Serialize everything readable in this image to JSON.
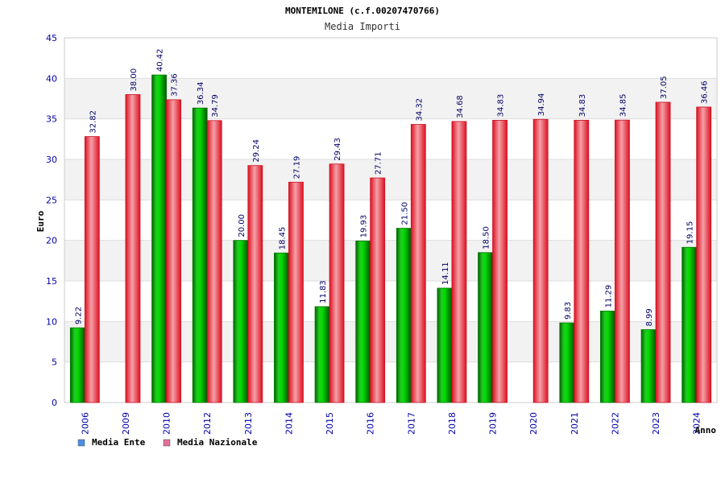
{
  "chart_data": {
    "type": "bar",
    "title": "MONTEMILONE (c.f.00207470766)",
    "subtitle": "Media Importi",
    "xlabel": "Anno",
    "ylabel": "Euro",
    "ylim": [
      0,
      45
    ],
    "yticks": [
      "0",
      "5",
      "10",
      "15",
      "20",
      "25",
      "30",
      "35",
      "40",
      "45"
    ],
    "grid": true,
    "legend_position": "bottom-left",
    "categories": [
      "2006",
      "2009",
      "2010",
      "2012",
      "2013",
      "2014",
      "2015",
      "2016",
      "2017",
      "2018",
      "2019",
      "2020",
      "2021",
      "2022",
      "2023",
      "2024"
    ],
    "series": [
      {
        "name": "Media Ente",
        "color": "#00aa00",
        "legend_color": "#4a90e2",
        "values": [
          9.22,
          null,
          40.42,
          36.34,
          20.0,
          18.45,
          11.83,
          19.93,
          21.5,
          14.11,
          18.5,
          null,
          9.83,
          11.29,
          8.99,
          19.15
        ],
        "labels": [
          "9.22",
          "",
          "40.42",
          "36.34",
          "20.00",
          "18.45",
          "11.83",
          "19.93",
          "21.50",
          "14.11",
          "18.50",
          "",
          "9.83",
          "11.29",
          "8.99",
          "19.15"
        ]
      },
      {
        "name": "Media Nazionale",
        "color": "#ee2233",
        "legend_color": "#e0709a",
        "values": [
          32.82,
          38.0,
          37.36,
          34.79,
          29.24,
          27.19,
          29.43,
          27.71,
          34.32,
          34.68,
          34.83,
          34.94,
          34.83,
          34.85,
          37.05,
          36.46
        ],
        "labels": [
          "32.82",
          "38.00",
          "37.36",
          "34.79",
          "29.24",
          "27.19",
          "29.43",
          "27.71",
          "34.32",
          "34.68",
          "34.83",
          "34.94",
          "34.83",
          "34.85",
          "37.05",
          "36.46"
        ]
      }
    ]
  }
}
